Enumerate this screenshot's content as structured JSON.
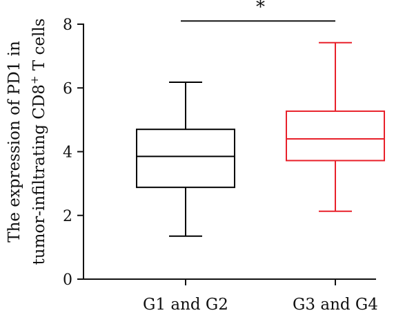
{
  "chart_data": {
    "type": "box",
    "categories": [
      "G1 and G2",
      "G3 and G4"
    ],
    "ylabel_line1": "The expression of PD1 in",
    "ylabel_line2_a": "tumor-infiltrating  CD8",
    "ylabel_line2_sup": "+",
    "ylabel_line2_b": " T cells",
    "ylim": [
      0,
      8
    ],
    "yticks": [
      0,
      2,
      4,
      6,
      8
    ],
    "boxes": [
      {
        "name": "G1 and G2",
        "min": 1.35,
        "q1": 2.88,
        "median": 3.85,
        "q3": 4.7,
        "max": 6.18,
        "color": "#000000"
      },
      {
        "name": "G3 and G4",
        "min": 2.13,
        "q1": 3.72,
        "median": 4.4,
        "q3": 5.27,
        "max": 7.42,
        "color": "#e8202a"
      }
    ],
    "significance": {
      "label": "*",
      "between": [
        "G1 and G2",
        "G3 and G4"
      ],
      "level": 8.1
    },
    "grid": false
  }
}
